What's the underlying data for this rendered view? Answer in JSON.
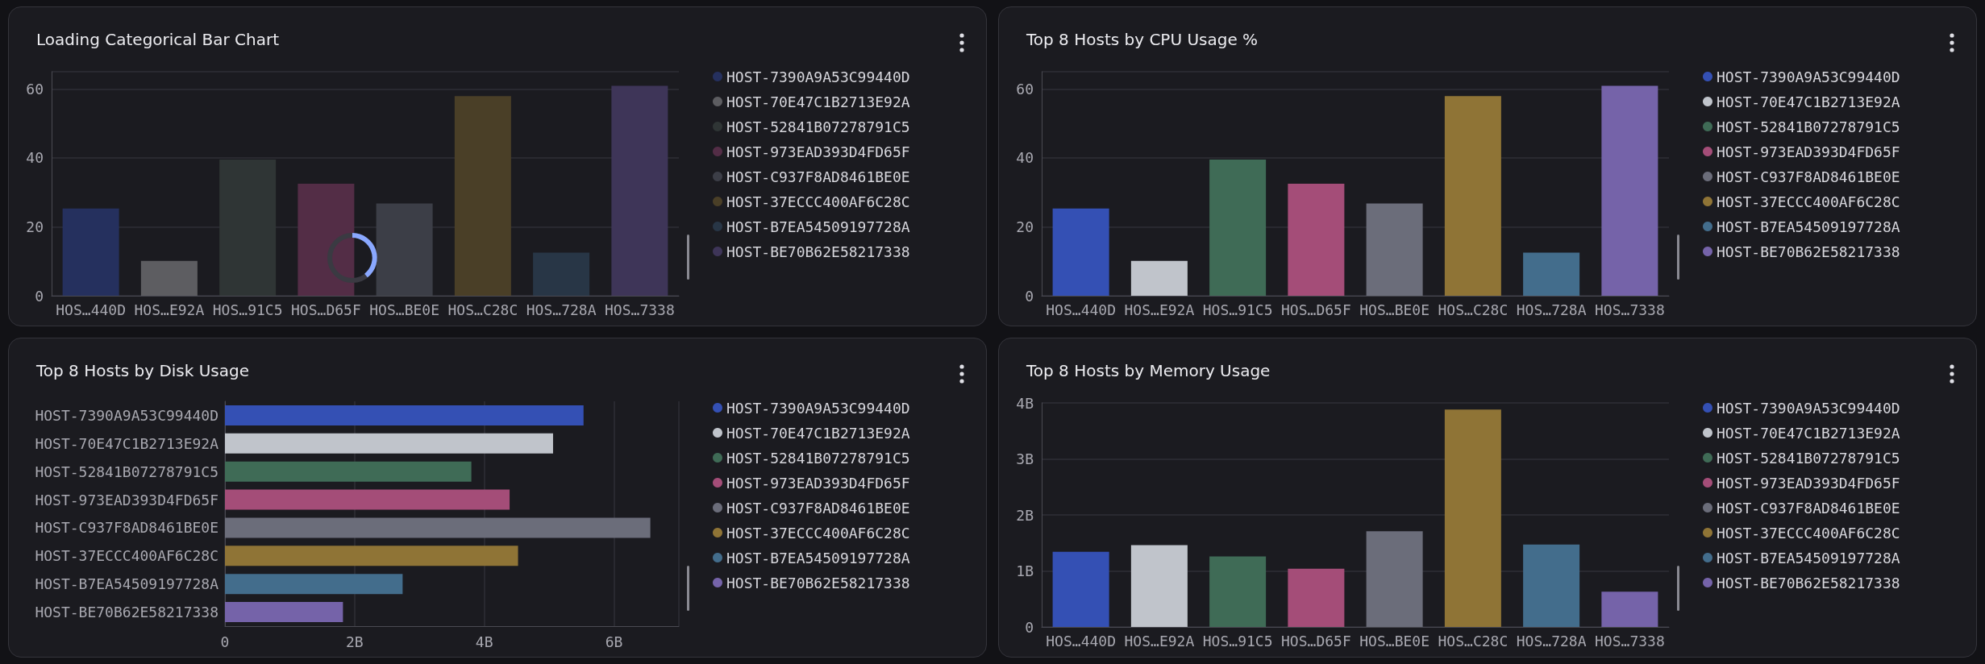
{
  "chart_data": [
    {
      "type": "bar",
      "title": "Loading Categorical Bar Chart",
      "categories": [
        "HOS…440D",
        "HOS…E92A",
        "HOS…91C5",
        "HOS…D65F",
        "HOS…BE0E",
        "HOS…C28C",
        "HOS…728A",
        "HOS…7338"
      ],
      "series": [
        {
          "name": "HOST-7390A9A53C99440D",
          "color": "#25305e",
          "values": [
            25.3,
            null,
            null,
            null,
            null,
            null,
            null,
            null
          ]
        },
        {
          "name": "HOST-70E47C1B2713E92A",
          "color": "#5d5d61",
          "values": [
            null,
            10.1,
            null,
            null,
            null,
            null,
            null,
            null
          ]
        },
        {
          "name": "HOST-52841B07278791C5",
          "color": "#2f3535",
          "values": [
            null,
            null,
            39.5,
            null,
            null,
            null,
            null,
            null
          ]
        },
        {
          "name": "HOST-973EAD393D4FD65F",
          "color": "#532d46",
          "values": [
            null,
            null,
            null,
            32.5,
            null,
            null,
            null,
            null
          ]
        },
        {
          "name": "HOST-C937F8AD8461BE0E",
          "color": "#3c3e47",
          "values": [
            null,
            null,
            null,
            null,
            26.8,
            null,
            null,
            null
          ]
        },
        {
          "name": "HOST-37ECCC400AF6C28C",
          "color": "#4a3f27",
          "values": [
            null,
            null,
            null,
            null,
            null,
            57.9,
            null,
            null
          ]
        },
        {
          "name": "HOST-B7EA54509197728A",
          "color": "#283646",
          "values": [
            null,
            null,
            null,
            null,
            null,
            null,
            12.5,
            null
          ]
        },
        {
          "name": "HOST-BE70B62E58217338",
          "color": "#3e3558",
          "values": [
            null,
            null,
            null,
            null,
            null,
            null,
            null,
            60.9
          ]
        }
      ],
      "ylim": [
        0,
        65
      ],
      "yticks": [
        0,
        20,
        40,
        60
      ],
      "grid": "y",
      "legend": "right"
    },
    {
      "type": "bar",
      "title": "Top 8 Hosts by CPU Usage %",
      "categories": [
        "HOS…440D",
        "HOS…E92A",
        "HOS…91C5",
        "HOS…D65F",
        "HOS…BE0E",
        "HOS…C28C",
        "HOS…728A",
        "HOS…7338"
      ],
      "series": [
        {
          "name": "HOST-7390A9A53C99440D",
          "color": "#3450b4",
          "values": [
            25.3,
            null,
            null,
            null,
            null,
            null,
            null,
            null
          ]
        },
        {
          "name": "HOST-70E47C1B2713E92A",
          "color": "#c0c4cb",
          "values": [
            null,
            10.1,
            null,
            null,
            null,
            null,
            null,
            null
          ]
        },
        {
          "name": "HOST-52841B07278791C5",
          "color": "#3f6b56",
          "values": [
            null,
            null,
            39.5,
            null,
            null,
            null,
            null,
            null
          ]
        },
        {
          "name": "HOST-973EAD393D4FD65F",
          "color": "#a44d78",
          "values": [
            null,
            null,
            null,
            32.5,
            null,
            null,
            null,
            null
          ]
        },
        {
          "name": "HOST-C937F8AD8461BE0E",
          "color": "#6b6d7a",
          "values": [
            null,
            null,
            null,
            null,
            26.8,
            null,
            null,
            null
          ]
        },
        {
          "name": "HOST-37ECCC400AF6C28C",
          "color": "#8f7436",
          "values": [
            null,
            null,
            null,
            null,
            null,
            57.9,
            null,
            null
          ]
        },
        {
          "name": "HOST-B7EA54509197728A",
          "color": "#436d8c",
          "values": [
            null,
            null,
            null,
            null,
            null,
            null,
            12.5,
            null
          ]
        },
        {
          "name": "HOST-BE70B62E58217338",
          "color": "#7563a9",
          "values": [
            null,
            null,
            null,
            null,
            null,
            null,
            null,
            60.9
          ]
        }
      ],
      "ylim": [
        0,
        65
      ],
      "yticks": [
        0,
        20,
        40,
        60
      ],
      "grid": "y",
      "legend": "right"
    },
    {
      "type": "bar",
      "title": "Top 8 Hosts by Disk Usage",
      "orientation": "horizontal",
      "categories": [
        "HOST-7390A9A53C99440D",
        "HOST-70E47C1B2713E92A",
        "HOST-52841B07278791C5",
        "HOST-973EAD393D4FD65F",
        "HOST-C937F8AD8461BE0E",
        "HOST-37ECCC400AF6C28C",
        "HOST-B7EA54509197728A",
        "HOST-BE70B62E58217338"
      ],
      "series": [
        {
          "name": "HOST-7390A9A53C99440D",
          "color": "#3450b4",
          "values": [
            5.53,
            null,
            null,
            null,
            null,
            null,
            null,
            null
          ]
        },
        {
          "name": "HOST-70E47C1B2713E92A",
          "color": "#c0c4cb",
          "values": [
            null,
            5.06,
            null,
            null,
            null,
            null,
            null,
            null
          ]
        },
        {
          "name": "HOST-52841B07278791C5",
          "color": "#3f6b56",
          "values": [
            null,
            null,
            3.8,
            null,
            null,
            null,
            null,
            null
          ]
        },
        {
          "name": "HOST-973EAD393D4FD65F",
          "color": "#a44d78",
          "values": [
            null,
            null,
            null,
            4.39,
            null,
            null,
            null,
            null
          ]
        },
        {
          "name": "HOST-C937F8AD8461BE0E",
          "color": "#6b6d7a",
          "values": [
            null,
            null,
            null,
            null,
            6.56,
            null,
            null,
            null
          ]
        },
        {
          "name": "HOST-37ECCC400AF6C28C",
          "color": "#8f7436",
          "values": [
            null,
            null,
            null,
            null,
            null,
            4.52,
            null,
            null
          ]
        },
        {
          "name": "HOST-B7EA54509197728A",
          "color": "#436d8c",
          "values": [
            null,
            null,
            null,
            null,
            null,
            null,
            2.74,
            null
          ]
        },
        {
          "name": "HOST-BE70B62E58217338",
          "color": "#7563a9",
          "values": [
            null,
            null,
            null,
            null,
            null,
            null,
            null,
            1.82
          ]
        }
      ],
      "xlim": [
        0,
        7
      ],
      "xticks": [
        0,
        {
          "value": 2,
          "label": "2B"
        },
        {
          "value": 4,
          "label": "4B"
        },
        {
          "value": 6,
          "label": "6B"
        }
      ],
      "grid": "x",
      "legend": "right"
    },
    {
      "type": "bar",
      "title": "Top 8 Hosts by Memory Usage",
      "categories": [
        "HOS…440D",
        "HOS…E92A",
        "HOS…91C5",
        "HOS…D65F",
        "HOS…BE0E",
        "HOS…C28C",
        "HOS…728A",
        "HOS…7338"
      ],
      "series": [
        {
          "name": "HOST-7390A9A53C99440D",
          "color": "#3450b4",
          "values": [
            1.34,
            null,
            null,
            null,
            null,
            null,
            null,
            null
          ]
        },
        {
          "name": "HOST-70E47C1B2713E92A",
          "color": "#c0c4cb",
          "values": [
            null,
            1.46,
            null,
            null,
            null,
            null,
            null,
            null
          ]
        },
        {
          "name": "HOST-52841B07278791C5",
          "color": "#3f6b56",
          "values": [
            null,
            null,
            1.26,
            null,
            null,
            null,
            null,
            null
          ]
        },
        {
          "name": "HOST-973EAD393D4FD65F",
          "color": "#a44d78",
          "values": [
            null,
            null,
            null,
            1.04,
            null,
            null,
            null,
            null
          ]
        },
        {
          "name": "HOST-C937F8AD8461BE0E",
          "color": "#6b6d7a",
          "values": [
            null,
            null,
            null,
            null,
            1.71,
            null,
            null,
            null
          ]
        },
        {
          "name": "HOST-37ECCC400AF6C28C",
          "color": "#8f7436",
          "values": [
            null,
            null,
            null,
            null,
            null,
            3.88,
            null,
            null
          ]
        },
        {
          "name": "HOST-B7EA54509197728A",
          "color": "#436d8c",
          "values": [
            null,
            null,
            null,
            null,
            null,
            null,
            1.47,
            null
          ]
        },
        {
          "name": "HOST-BE70B62E58217338",
          "color": "#7563a9",
          "values": [
            null,
            null,
            null,
            null,
            null,
            null,
            null,
            0.63
          ]
        }
      ],
      "ylim": [
        0,
        4
      ],
      "yticks": [
        0,
        {
          "value": 1,
          "label": "1B"
        },
        {
          "value": 2,
          "label": "2B"
        },
        {
          "value": 3,
          "label": "3B"
        },
        {
          "value": 4,
          "label": "4B"
        }
      ],
      "grid": "y",
      "legend": "right"
    }
  ]
}
